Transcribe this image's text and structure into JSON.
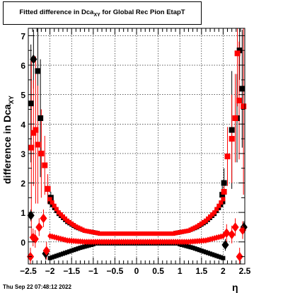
{
  "title": {
    "prefix": "Fitted difference in Dca",
    "sub": "XY",
    "suffix": " for Global Rec Pion EtapT"
  },
  "y_axis_title": {
    "main": "difference in Dca",
    "sub": "XY"
  },
  "x_axis_title": "η",
  "timestamp": "Thu Sep 22 07:48:12 2022",
  "colors": {
    "black_series": "#000000",
    "red_series": "#ff0000"
  },
  "chart_data": {
    "type": "scatter",
    "title": "Fitted difference in DcaXY for Global Rec Pion EtapT",
    "xlabel": "η",
    "ylabel": "difference in DcaXY",
    "xlim": [
      -2.5,
      2.5
    ],
    "ylim": [
      -0.75,
      7.25
    ],
    "x_ticks": [
      -2.5,
      -2,
      -1.5,
      -1,
      -0.5,
      0,
      0.5,
      1,
      1.5,
      2,
      2.5
    ],
    "x_tick_labels": [
      "−2.5",
      "−2",
      "−1.5",
      "−1",
      "−0.5",
      "0",
      "0.5",
      "1",
      "1.5",
      "2",
      "2.5"
    ],
    "y_ticks": [
      0,
      1,
      2,
      3,
      4,
      5,
      6,
      7
    ],
    "y_tick_labels": [
      "0",
      "1",
      "2",
      "3",
      "4",
      "5",
      "6",
      "7"
    ],
    "grid": true,
    "legend": "none",
    "series": [
      {
        "color": "#000000",
        "markers": [
          {
            "x": -2.44,
            "y": 4.7,
            "shape": "square",
            "err": 2.0
          },
          {
            "x": -2.38,
            "y": 6.2,
            "shape": "diamond",
            "err": 1.0
          },
          {
            "x": -2.28,
            "y": 5.8,
            "shape": "square",
            "err": 1.5
          },
          {
            "x": -2.22,
            "y": 4.2,
            "shape": "square",
            "err": 2.0
          },
          {
            "x": -2.05,
            "y": 1.8,
            "shape": "square",
            "err": 0.4
          },
          {
            "x": -1.98,
            "y": 1.5,
            "shape": "square",
            "err": 0.2
          },
          {
            "x": 1.98,
            "y": 1.6,
            "shape": "square",
            "err": 0.3
          },
          {
            "x": 2.02,
            "y": 2.0,
            "shape": "square",
            "err": 0.5
          },
          {
            "x": 2.2,
            "y": 3.8,
            "shape": "square",
            "err": 2.0
          },
          {
            "x": 2.32,
            "y": 4.2,
            "shape": "square",
            "err": 1.5
          },
          {
            "x": 2.38,
            "y": 6.5,
            "shape": "square",
            "err": 1.0
          },
          {
            "x": 2.44,
            "y": 5.2,
            "shape": "square",
            "err": 2.0
          },
          {
            "x": -2.44,
            "y": 0.9,
            "shape": "diamond",
            "err": 0.2
          },
          {
            "x": -2.1,
            "y": -0.4,
            "shape": "diamond",
            "err": 0.2
          },
          {
            "x": 2.05,
            "y": -0.1,
            "shape": "diamond",
            "err": 0.2
          },
          {
            "x": 2.48,
            "y": 0.5,
            "shape": "diamond",
            "err": 0.2
          }
        ],
        "curves": [
          {
            "x_from": -2.0,
            "x_to": -1.0,
            "shape": "square",
            "points": [
              [
                -2.0,
                -0.55
              ],
              [
                -1.6,
                -0.35
              ],
              [
                -1.3,
                -0.2
              ],
              [
                -1.0,
                -0.08
              ]
            ]
          },
          {
            "x_from": -0.95,
            "x_to": 0.95,
            "shape": "square",
            "points": [
              [
                -0.95,
                -0.05
              ],
              [
                0.95,
                -0.05
              ]
            ]
          },
          {
            "x_from": 1.0,
            "x_to": 2.0,
            "shape": "square",
            "points": [
              [
                1.0,
                -0.08
              ],
              [
                1.3,
                -0.2
              ],
              [
                1.6,
                -0.35
              ],
              [
                2.0,
                -0.55
              ]
            ]
          },
          {
            "x_from": -2.0,
            "x_to": -0.9,
            "shape": "square",
            "points": [
              [
                -2.0,
                1.35
              ],
              [
                -1.8,
                0.95
              ],
              [
                -1.6,
                0.68
              ],
              [
                -1.4,
                0.5
              ],
              [
                -1.2,
                0.38
              ],
              [
                -0.9,
                0.3
              ]
            ]
          },
          {
            "x_from": 0.9,
            "x_to": 2.0,
            "shape": "square",
            "points": [
              [
                0.9,
                0.3
              ],
              [
                1.2,
                0.38
              ],
              [
                1.4,
                0.5
              ],
              [
                1.6,
                0.68
              ],
              [
                1.8,
                0.95
              ],
              [
                2.0,
                1.35
              ]
            ]
          }
        ]
      },
      {
        "color": "#ff0000",
        "markers": [
          {
            "x": -2.43,
            "y": 3.2,
            "shape": "square",
            "err": 3.0
          },
          {
            "x": -2.38,
            "y": 3.7,
            "shape": "square",
            "err": 1.8
          },
          {
            "x": -2.33,
            "y": 3.8,
            "shape": "square",
            "err": 2.5
          },
          {
            "x": -2.28,
            "y": 3.3,
            "shape": "square",
            "err": 2.0
          },
          {
            "x": -2.2,
            "y": 3.0,
            "shape": "square",
            "err": 1.5
          },
          {
            "x": -2.12,
            "y": 2.6,
            "shape": "square",
            "err": 1.0
          },
          {
            "x": -2.05,
            "y": 1.8,
            "shape": "square",
            "err": 0.5
          },
          {
            "x": 2.02,
            "y": 1.7,
            "shape": "square",
            "err": 0.3
          },
          {
            "x": 2.1,
            "y": 2.9,
            "shape": "square",
            "err": 1.0
          },
          {
            "x": 2.2,
            "y": 3.5,
            "shape": "square",
            "err": 1.5
          },
          {
            "x": 2.28,
            "y": 4.2,
            "shape": "square",
            "err": 1.5
          },
          {
            "x": 2.33,
            "y": 6.4,
            "shape": "square",
            "err": 1.8
          },
          {
            "x": 2.37,
            "y": 4.8,
            "shape": "square",
            "err": 2.0
          },
          {
            "x": 2.47,
            "y": 4.6,
            "shape": "square",
            "err": 3.0
          },
          {
            "x": -2.45,
            "y": -0.5,
            "shape": "diamond",
            "err": 0.3
          },
          {
            "x": -2.39,
            "y": 0.15,
            "shape": "diamond",
            "err": 0.3
          },
          {
            "x": -2.34,
            "y": 0.1,
            "shape": "diamond",
            "err": 0.3
          },
          {
            "x": -2.25,
            "y": 0.5,
            "shape": "diamond",
            "err": 0.3
          },
          {
            "x": -2.15,
            "y": 0.8,
            "shape": "diamond",
            "err": 0.3
          },
          {
            "x": -2.08,
            "y": -0.3,
            "shape": "diamond",
            "err": 0.3
          },
          {
            "x": 2.08,
            "y": 0.3,
            "shape": "diamond",
            "err": 0.3
          },
          {
            "x": 2.2,
            "y": 0.25,
            "shape": "diamond",
            "err": 0.3
          },
          {
            "x": 2.28,
            "y": 0.5,
            "shape": "diamond",
            "err": 0.3
          },
          {
            "x": 2.38,
            "y": -0.5,
            "shape": "diamond",
            "err": 0.3
          },
          {
            "x": 2.45,
            "y": 0.4,
            "shape": "diamond",
            "err": 0.3
          }
        ],
        "curves": [
          {
            "x_from": -2.0,
            "x_to": -0.9,
            "shape": "square",
            "points": [
              [
                -2.0,
                1.45
              ],
              [
                -1.8,
                1.0
              ],
              [
                -1.6,
                0.72
              ],
              [
                -1.4,
                0.52
              ],
              [
                -1.2,
                0.38
              ],
              [
                -0.9,
                0.3
              ]
            ]
          },
          {
            "x_from": -0.85,
            "x_to": 0.85,
            "shape": "square",
            "points": [
              [
                -0.85,
                0.28
              ],
              [
                0.85,
                0.28
              ]
            ]
          },
          {
            "x_from": 0.9,
            "x_to": 2.0,
            "shape": "square",
            "points": [
              [
                0.9,
                0.3
              ],
              [
                1.2,
                0.38
              ],
              [
                1.4,
                0.52
              ],
              [
                1.6,
                0.72
              ],
              [
                1.8,
                1.0
              ],
              [
                2.0,
                1.45
              ]
            ]
          },
          {
            "x_from": -2.0,
            "x_to": 2.0,
            "shape": "diamond",
            "points": [
              [
                -2.0,
                0.2
              ],
              [
                -1.6,
                0.05
              ],
              [
                -1.2,
                0.0
              ],
              [
                1.2,
                0.0
              ],
              [
                1.6,
                0.05
              ],
              [
                2.0,
                0.2
              ]
            ]
          }
        ]
      }
    ]
  }
}
